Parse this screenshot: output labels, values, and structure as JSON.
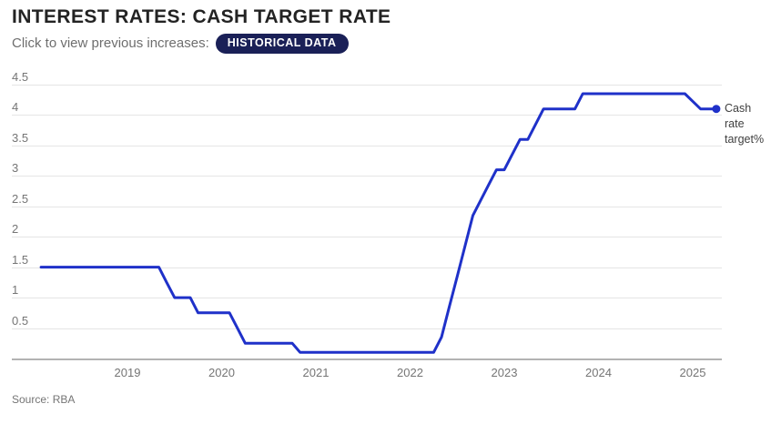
{
  "header": {
    "title": "INTEREST RATES: CASH TARGET RATE",
    "subtitle": "Click to view previous increases:",
    "badge_label": "HISTORICAL DATA"
  },
  "annotation": {
    "series_label": "Cash rate target%"
  },
  "footer": {
    "source": "Source: RBA"
  },
  "colors": {
    "line": "#1f31c9",
    "badge_bg": "#1a2057",
    "badge_text": "#ffffff",
    "title": "#232323",
    "muted": "#757575",
    "grid": "#e5e5e5",
    "axis": "#b3b3b3",
    "annotation": "#3f3f3f"
  },
  "chart_data": {
    "type": "line",
    "title": "Cash rate target%",
    "xlabel": "",
    "ylabel": "",
    "x_ticks": [
      2019,
      2020,
      2021,
      2022,
      2023,
      2024,
      2025
    ],
    "y_ticks": [
      4.5,
      4,
      3.5,
      3,
      2.5,
      2,
      1.5,
      1,
      0.5
    ],
    "ylim": [
      0,
      4.7
    ],
    "xlim": [
      2018.0,
      2025.4
    ],
    "grid": "horizontal-only",
    "legend_position": "right-of-line-end",
    "series_name": "Cash rate target%",
    "points": [
      [
        "2018-02",
        1.5
      ],
      [
        "2019-05",
        1.5
      ],
      [
        "2019-06",
        1.25
      ],
      [
        "2019-07",
        1.0
      ],
      [
        "2019-09",
        1.0
      ],
      [
        "2019-10",
        0.75
      ],
      [
        "2020-02",
        0.75
      ],
      [
        "2020-03",
        0.5
      ],
      [
        "2020-04",
        0.25
      ],
      [
        "2020-10",
        0.25
      ],
      [
        "2020-11",
        0.1
      ],
      [
        "2022-04",
        0.1
      ],
      [
        "2022-05",
        0.35
      ],
      [
        "2022-06",
        0.85
      ],
      [
        "2022-07",
        1.35
      ],
      [
        "2022-08",
        1.85
      ],
      [
        "2022-09",
        2.35
      ],
      [
        "2022-10",
        2.6
      ],
      [
        "2022-11",
        2.85
      ],
      [
        "2022-12",
        3.1
      ],
      [
        "2023-01",
        3.1
      ],
      [
        "2023-02",
        3.35
      ],
      [
        "2023-03",
        3.6
      ],
      [
        "2023-04",
        3.6
      ],
      [
        "2023-05",
        3.85
      ],
      [
        "2023-06",
        4.1
      ],
      [
        "2023-10",
        4.1
      ],
      [
        "2023-11",
        4.35
      ],
      [
        "2024-12",
        4.35
      ],
      [
        "2025-02",
        4.1
      ],
      [
        "2025-04",
        4.1
      ]
    ]
  }
}
